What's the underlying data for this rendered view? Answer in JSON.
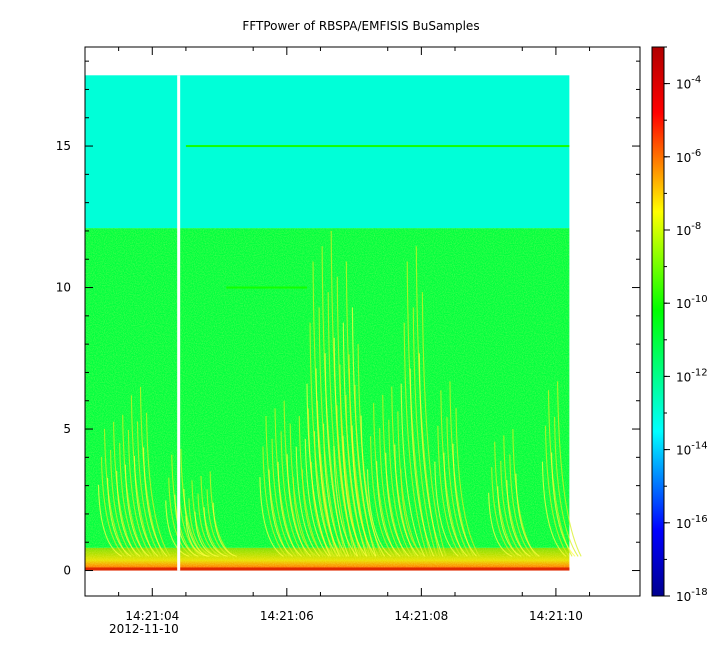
{
  "chart_data": {
    "type": "heatmap",
    "title": "FFTPower of RBSPA/EMFISIS  BuSamples",
    "xlabel": "",
    "ylabel": "",
    "x_ticks": [
      "14:21:04",
      "14:21:06",
      "14:21:08",
      "14:21:10"
    ],
    "x_tick_seconds": [
      4,
      6,
      8,
      10
    ],
    "x_date_label": "2012-11-10",
    "xlim_seconds": [
      3.0,
      11.25
    ],
    "x_data_range_seconds": [
      3.0,
      10.2
    ],
    "y_ticks": [
      "0",
      "5",
      "10",
      "15"
    ],
    "y_tick_values": [
      0,
      5,
      10,
      15
    ],
    "ylim": [
      -0.9,
      18.5
    ],
    "y_data_range": [
      0,
      17.5
    ],
    "gap_seconds": 4.4,
    "colorbar": {
      "scale": "log",
      "range": [
        1e-18,
        0.001
      ],
      "ticks": [
        {
          "base": "10",
          "exp": "-4",
          "value": 0.0001
        },
        {
          "base": "10",
          "exp": "-6",
          "value": 1e-06
        },
        {
          "base": "10",
          "exp": "-8",
          "value": 1e-08
        },
        {
          "base": "10",
          "exp": "-10",
          "value": 1e-10
        },
        {
          "base": "10",
          "exp": "-12",
          "value": 1e-12
        },
        {
          "base": "10",
          "exp": "-14",
          "value": 1e-14
        },
        {
          "base": "10",
          "exp": "-16",
          "value": 1e-16
        },
        {
          "base": "10",
          "exp": "-18",
          "value": 1e-18
        }
      ],
      "colors": [
        "#00008f",
        "#0000ff",
        "#00ffff",
        "#00ff00",
        "#ffff00",
        "#ff0000",
        "#800000"
      ]
    },
    "bands": [
      {
        "y_range": [
          12.1,
          17.5
        ],
        "level": 1e-13
      },
      {
        "y_range": [
          0.8,
          12.1
        ],
        "level": 1e-11
      },
      {
        "y_range": [
          0,
          0.8
        ],
        "level": 1e-08
      }
    ],
    "lines": [
      {
        "y": 15.0,
        "x_range": [
          4.5,
          10.2
        ],
        "level": 1e-10
      },
      {
        "y": 10.0,
        "x_range": [
          5.1,
          6.3
        ],
        "level": 1e-10
      }
    ]
  }
}
